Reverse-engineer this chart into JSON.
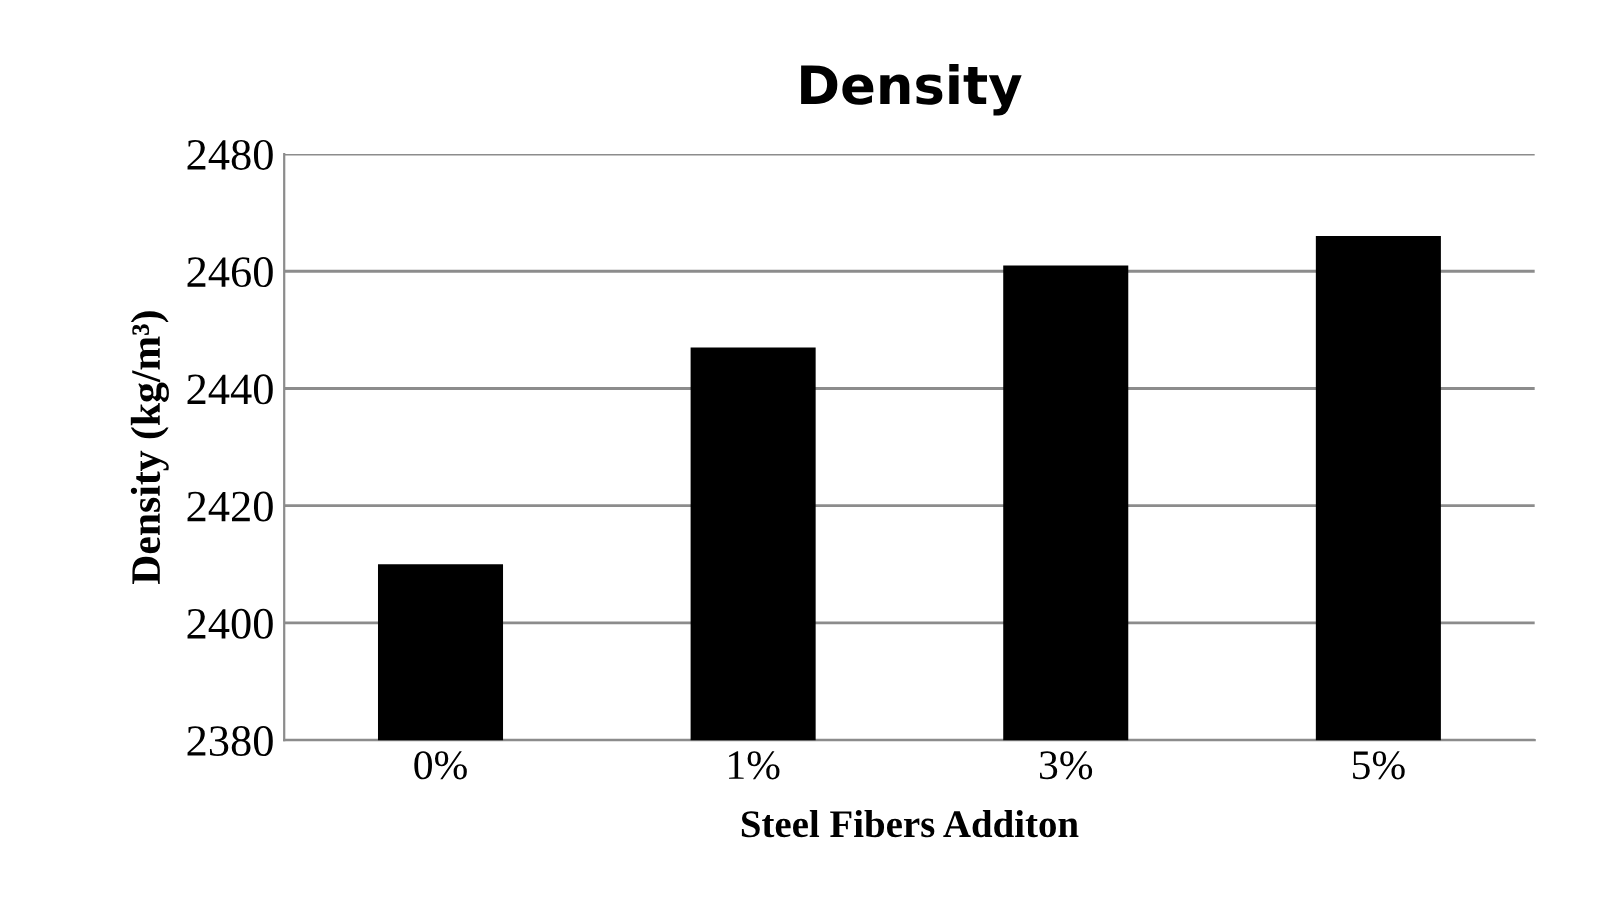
{
  "chart_data": {
    "type": "bar",
    "title": "Density",
    "xlabel": "Steel Fibers Additon",
    "ylabel": "Density (kg/m³)",
    "categories": [
      "0%",
      "1%",
      "3%",
      "5%"
    ],
    "values": [
      2410,
      2447,
      2461,
      2466
    ],
    "color": "#000000",
    "ylim": [
      2380,
      2480
    ],
    "yticks": [
      2380,
      2400,
      2420,
      2440,
      2460,
      2480
    ],
    "grid": "y"
  }
}
